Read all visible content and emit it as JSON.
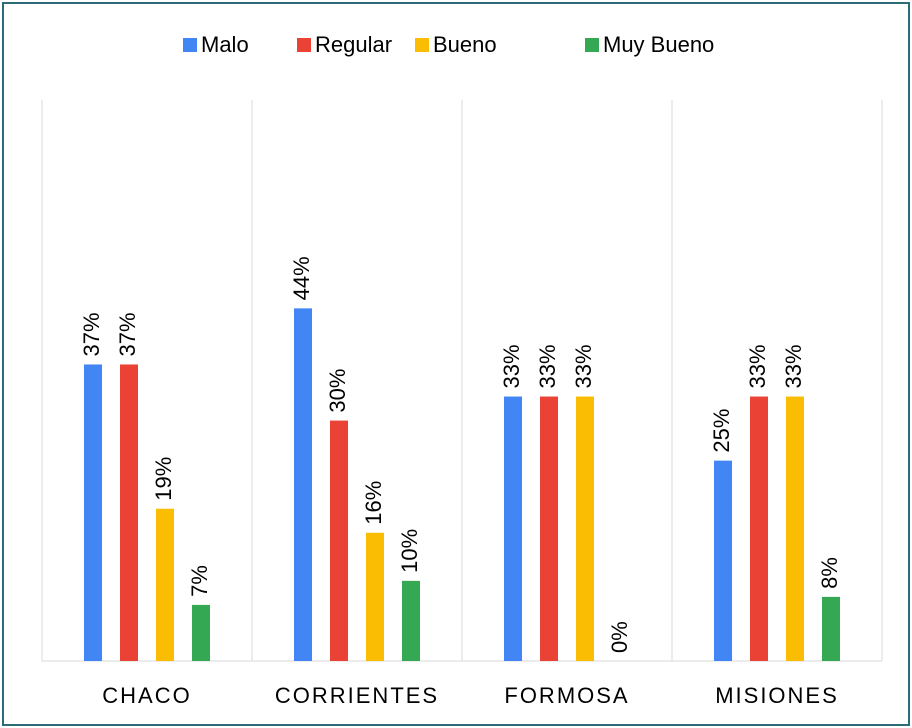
{
  "chart_data": {
    "type": "bar",
    "categories": [
      "CHACO",
      "CORRIENTES",
      "FORMOSA",
      "MISIONES"
    ],
    "series": [
      {
        "name": "Malo",
        "color": "#4285f4",
        "values": [
          37,
          44,
          33,
          25
        ],
        "value_labels": [
          "37%",
          "44%",
          "33%",
          "25%"
        ]
      },
      {
        "name": "Regular",
        "color": "#ea4335",
        "values": [
          37,
          30,
          33,
          33
        ],
        "value_labels": [
          "37%",
          "30%",
          "33%",
          "33%"
        ]
      },
      {
        "name": "Bueno",
        "color": "#fbbc04",
        "values": [
          19,
          16,
          33,
          33
        ],
        "value_labels": [
          "19%",
          "16%",
          "33%",
          "33%"
        ]
      },
      {
        "name": "Muy Bueno",
        "color": "#34a853",
        "values": [
          7,
          10,
          0,
          8
        ],
        "value_labels": [
          "7%",
          "10%",
          "0%",
          "8%"
        ]
      }
    ],
    "ylim": [
      0,
      70
    ],
    "legend": "top"
  }
}
